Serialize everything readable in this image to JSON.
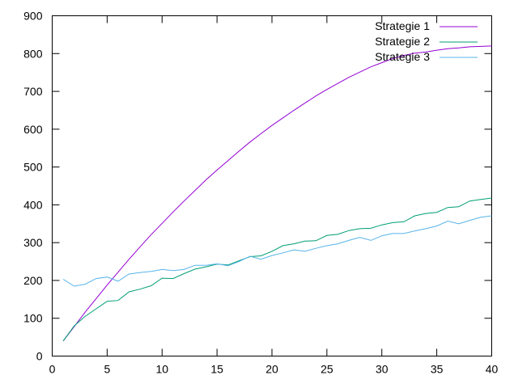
{
  "chart_data": {
    "type": "line",
    "title": "",
    "xlabel": "",
    "ylabel": "",
    "xlim": [
      0,
      40
    ],
    "ylim": [
      0,
      900
    ],
    "xticks": [
      0,
      5,
      10,
      15,
      20,
      25,
      30,
      35,
      40
    ],
    "yticks": [
      0,
      100,
      200,
      300,
      400,
      500,
      600,
      700,
      800,
      900
    ],
    "grid": false,
    "legend_position": "top-right",
    "series": [
      {
        "name": "Strategie 1",
        "color": "#9400d3",
        "x": [
          1,
          2,
          3,
          4,
          5,
          6,
          7,
          8,
          9,
          10,
          11,
          12,
          13,
          14,
          15,
          16,
          17,
          18,
          19,
          20,
          21,
          22,
          23,
          24,
          25,
          26,
          27,
          28,
          29,
          30,
          31,
          32,
          33,
          34,
          35,
          36,
          37,
          38,
          39,
          40
        ],
        "y": [
          40,
          78,
          116,
          152,
          188,
          222,
          256,
          289,
          321,
          351,
          381,
          410,
          438,
          466,
          492,
          517,
          542,
          566,
          588,
          610,
          630,
          650,
          669,
          688,
          705,
          721,
          737,
          751,
          765,
          776,
          787,
          795,
          801,
          804,
          809,
          813,
          815,
          818,
          819,
          820
        ]
      },
      {
        "name": "Strategie 2",
        "color": "#009e73",
        "x": [
          1,
          2,
          3,
          4,
          5,
          6,
          7,
          8,
          9,
          10,
          11,
          12,
          13,
          14,
          15,
          16,
          17,
          18,
          19,
          20,
          21,
          22,
          23,
          24,
          25,
          26,
          27,
          28,
          29,
          30,
          31,
          32,
          33,
          34,
          35,
          36,
          37,
          38,
          39,
          40
        ],
        "y": [
          40,
          80,
          105,
          125,
          145,
          147,
          170,
          177,
          186,
          206,
          205,
          218,
          230,
          236,
          243,
          241,
          252,
          263,
          265,
          277,
          292,
          297,
          304,
          305,
          319,
          322,
          332,
          337,
          338,
          347,
          353,
          355,
          371,
          377,
          380,
          393,
          395,
          410,
          414,
          418
        ]
      },
      {
        "name": "Strategie 3",
        "color": "#56b4e9",
        "x": [
          1,
          2,
          3,
          4,
          5,
          6,
          7,
          8,
          9,
          10,
          11,
          12,
          13,
          14,
          15,
          16,
          17,
          18,
          19,
          20,
          21,
          22,
          23,
          24,
          25,
          26,
          27,
          28,
          29,
          30,
          31,
          32,
          33,
          34,
          35,
          36,
          37,
          38,
          39,
          40
        ],
        "y": [
          203,
          185,
          190,
          205,
          209,
          198,
          217,
          221,
          224,
          229,
          226,
          229,
          240,
          240,
          244,
          239,
          250,
          264,
          256,
          266,
          273,
          281,
          277,
          285,
          292,
          297,
          306,
          314,
          306,
          318,
          324,
          324,
          331,
          337,
          344,
          357,
          350,
          359,
          367,
          371
        ]
      }
    ]
  }
}
